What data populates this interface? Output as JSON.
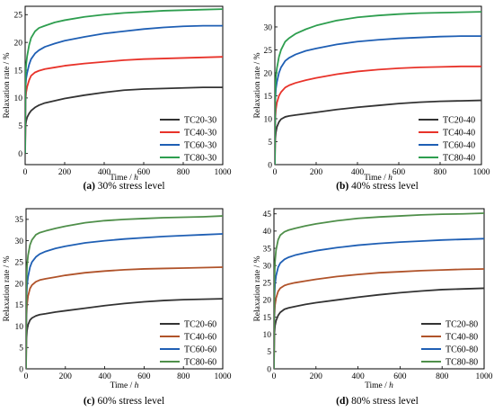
{
  "chart_data": [
    {
      "type": "line",
      "caption_tag": "(a)",
      "caption_text": " 30% stress level",
      "xlabel": "Time / ",
      "xlabel_unit": "h",
      "ylabel": "Relaxation rate / %",
      "xlim": [
        0,
        1000
      ],
      "ylim": [
        -2,
        26.5
      ],
      "xticks": [
        0,
        200,
        400,
        600,
        800,
        1000
      ],
      "yticks": [
        0,
        5,
        10,
        15,
        20,
        25
      ],
      "legend_position": "bottom-right",
      "series": [
        {
          "name": "TC20-30",
          "color": "#333333",
          "x": [
            0,
            2,
            5,
            10,
            20,
            30,
            50,
            70,
            100,
            150,
            200,
            300,
            400,
            500,
            600,
            700,
            800,
            900,
            1000
          ],
          "y": [
            0,
            5.0,
            5.8,
            6.5,
            7.2,
            7.7,
            8.3,
            8.7,
            9.1,
            9.5,
            9.9,
            10.5,
            11.0,
            11.4,
            11.6,
            11.7,
            11.8,
            11.9,
            11.9
          ]
        },
        {
          "name": "TC40-30",
          "color": "#e8332a",
          "x": [
            0,
            2,
            5,
            10,
            20,
            30,
            50,
            70,
            100,
            150,
            200,
            300,
            400,
            500,
            600,
            700,
            800,
            900,
            1000
          ],
          "y": [
            0,
            9.5,
            11.0,
            12.0,
            13.2,
            14.0,
            14.6,
            14.9,
            15.2,
            15.5,
            15.8,
            16.2,
            16.5,
            16.8,
            17.0,
            17.1,
            17.2,
            17.3,
            17.4
          ]
        },
        {
          "name": "TC60-30",
          "color": "#1f5fb4",
          "x": [
            0,
            2,
            5,
            10,
            20,
            30,
            50,
            70,
            100,
            150,
            200,
            300,
            400,
            500,
            600,
            700,
            800,
            900,
            1000
          ],
          "y": [
            0,
            12.0,
            13.5,
            14.5,
            16.0,
            17.0,
            18.0,
            18.6,
            19.2,
            19.8,
            20.3,
            21.0,
            21.6,
            22.0,
            22.4,
            22.7,
            22.9,
            23.0,
            23.0
          ]
        },
        {
          "name": "TC80-30",
          "color": "#2e9e4f",
          "x": [
            0,
            2,
            5,
            10,
            20,
            30,
            50,
            70,
            100,
            150,
            200,
            300,
            400,
            500,
            600,
            700,
            800,
            900,
            1000
          ],
          "y": [
            0,
            14.0,
            16.0,
            17.5,
            19.5,
            20.8,
            22.0,
            22.6,
            23.0,
            23.6,
            24.0,
            24.6,
            25.0,
            25.3,
            25.5,
            25.7,
            25.8,
            25.9,
            26.0
          ]
        }
      ]
    },
    {
      "type": "line",
      "caption_tag": "(b)",
      "caption_text": " 40% stress level",
      "xlabel": "Time / ",
      "xlabel_unit": "h",
      "ylabel": "Relaxation rate / %",
      "xlim": [
        0,
        1000
      ],
      "ylim": [
        0,
        34.5
      ],
      "xticks": [
        0,
        200,
        400,
        600,
        800,
        1000
      ],
      "yticks": [
        0,
        5,
        10,
        15,
        20,
        25,
        30
      ],
      "legend_position": "bottom-right",
      "series": [
        {
          "name": "TC20-40",
          "color": "#333333",
          "x": [
            0,
            2,
            5,
            10,
            20,
            30,
            50,
            70,
            100,
            150,
            200,
            300,
            400,
            500,
            600,
            700,
            800,
            900,
            1000
          ],
          "y": [
            0,
            5.5,
            7.0,
            8.2,
            9.3,
            9.9,
            10.4,
            10.6,
            10.8,
            11.1,
            11.4,
            12.0,
            12.5,
            12.9,
            13.3,
            13.6,
            13.8,
            13.9,
            14.0
          ]
        },
        {
          "name": "TC40-40",
          "color": "#e8332a",
          "x": [
            0,
            2,
            5,
            10,
            20,
            30,
            50,
            70,
            100,
            150,
            200,
            300,
            400,
            500,
            600,
            700,
            800,
            900,
            1000
          ],
          "y": [
            0,
            10.0,
            12.0,
            13.5,
            15.0,
            15.8,
            16.8,
            17.3,
            17.8,
            18.4,
            18.9,
            19.7,
            20.3,
            20.7,
            21.0,
            21.2,
            21.3,
            21.4,
            21.4
          ]
        },
        {
          "name": "TC60-40",
          "color": "#1f5fb4",
          "x": [
            0,
            2,
            5,
            10,
            20,
            30,
            50,
            70,
            100,
            150,
            200,
            300,
            400,
            500,
            600,
            700,
            800,
            900,
            1000
          ],
          "y": [
            0,
            14.0,
            16.5,
            18.0,
            20.0,
            21.2,
            22.6,
            23.3,
            24.0,
            24.8,
            25.3,
            26.2,
            26.8,
            27.2,
            27.5,
            27.7,
            27.9,
            28.0,
            28.0
          ]
        },
        {
          "name": "TC80-40",
          "color": "#2e9e4f",
          "x": [
            0,
            2,
            5,
            10,
            20,
            30,
            50,
            70,
            100,
            150,
            200,
            300,
            400,
            500,
            600,
            700,
            800,
            900,
            1000
          ],
          "y": [
            0,
            16.0,
            19.0,
            21.0,
            23.5,
            25.0,
            26.8,
            27.6,
            28.5,
            29.5,
            30.3,
            31.4,
            32.1,
            32.5,
            32.8,
            33.0,
            33.1,
            33.2,
            33.3
          ]
        }
      ]
    },
    {
      "type": "line",
      "caption_tag": "(c)",
      "caption_text": " 60% stress level",
      "xlabel": "Time / ",
      "xlabel_unit": "h",
      "ylabel": "Relaxation rate / %",
      "xlim": [
        0,
        1000
      ],
      "ylim": [
        0,
        37.5
      ],
      "xticks": [
        0,
        200,
        400,
        600,
        800,
        1000
      ],
      "yticks": [
        0,
        5,
        10,
        15,
        20,
        25,
        30,
        35
      ],
      "legend_position": "bottom-right",
      "series": [
        {
          "name": "TC20-60",
          "color": "#333333",
          "x": [
            0,
            2,
            5,
            10,
            20,
            30,
            50,
            70,
            100,
            150,
            200,
            300,
            400,
            500,
            600,
            700,
            800,
            900,
            1000
          ],
          "y": [
            0,
            7.0,
            9.0,
            10.3,
            11.4,
            11.9,
            12.4,
            12.7,
            12.9,
            13.3,
            13.6,
            14.2,
            14.8,
            15.3,
            15.7,
            16.0,
            16.2,
            16.3,
            16.4
          ]
        },
        {
          "name": "TC40-60",
          "color": "#b0532a",
          "x": [
            0,
            2,
            5,
            10,
            20,
            30,
            50,
            70,
            100,
            150,
            200,
            300,
            400,
            500,
            600,
            700,
            800,
            900,
            1000
          ],
          "y": [
            0,
            12.0,
            15.0,
            17.0,
            18.8,
            19.6,
            20.4,
            20.8,
            21.1,
            21.5,
            21.9,
            22.5,
            22.9,
            23.2,
            23.4,
            23.5,
            23.6,
            23.7,
            23.8
          ]
        },
        {
          "name": "TC60-60",
          "color": "#1f5fb4",
          "x": [
            0,
            2,
            5,
            10,
            20,
            30,
            50,
            70,
            100,
            150,
            200,
            300,
            400,
            500,
            600,
            700,
            800,
            900,
            1000
          ],
          "y": [
            0,
            16.0,
            19.5,
            21.5,
            23.8,
            25.0,
            26.2,
            26.9,
            27.5,
            28.2,
            28.7,
            29.5,
            30.0,
            30.4,
            30.7,
            31.0,
            31.2,
            31.4,
            31.6
          ]
        },
        {
          "name": "TC80-60",
          "color": "#4f8f4a",
          "x": [
            0,
            2,
            5,
            10,
            20,
            30,
            50,
            70,
            100,
            150,
            200,
            300,
            400,
            500,
            600,
            700,
            800,
            900,
            1000
          ],
          "y": [
            0,
            20.0,
            24.0,
            26.5,
            29.0,
            30.2,
            31.4,
            31.9,
            32.3,
            32.9,
            33.4,
            34.2,
            34.7,
            35.0,
            35.2,
            35.4,
            35.5,
            35.6,
            35.8
          ]
        }
      ]
    },
    {
      "type": "line",
      "caption_tag": "(d)",
      "caption_text": " 80% stress level",
      "xlabel": "Time / ",
      "xlabel_unit": "h",
      "ylabel": "Relaxation rate / %",
      "xlim": [
        0,
        1000
      ],
      "ylim": [
        0,
        46.5
      ],
      "xticks": [
        0,
        200,
        400,
        600,
        800,
        1000
      ],
      "yticks": [
        0,
        5,
        10,
        15,
        20,
        25,
        30,
        35,
        40,
        45
      ],
      "legend_position": "bottom-right",
      "series": [
        {
          "name": "TC20-80",
          "color": "#333333",
          "x": [
            0,
            2,
            5,
            10,
            20,
            30,
            50,
            70,
            100,
            150,
            200,
            300,
            400,
            500,
            600,
            700,
            800,
            900,
            1000
          ],
          "y": [
            0,
            10.0,
            12.5,
            14.0,
            15.5,
            16.4,
            17.3,
            17.7,
            18.1,
            18.7,
            19.2,
            20.0,
            20.8,
            21.5,
            22.1,
            22.6,
            23.0,
            23.2,
            23.4
          ]
        },
        {
          "name": "TC40-80",
          "color": "#b0532a",
          "x": [
            0,
            2,
            5,
            10,
            20,
            30,
            50,
            70,
            100,
            150,
            200,
            300,
            400,
            500,
            600,
            700,
            800,
            900,
            1000
          ],
          "y": [
            0,
            15.0,
            18.5,
            20.5,
            22.5,
            23.4,
            24.2,
            24.6,
            25.0,
            25.5,
            26.0,
            26.8,
            27.4,
            27.9,
            28.2,
            28.5,
            28.7,
            28.9,
            29.0
          ]
        },
        {
          "name": "TC60-80",
          "color": "#1f5fb4",
          "x": [
            0,
            2,
            5,
            10,
            20,
            30,
            50,
            70,
            100,
            150,
            200,
            300,
            400,
            500,
            600,
            700,
            800,
            900,
            1000
          ],
          "y": [
            0,
            20.0,
            24.5,
            27.0,
            29.5,
            30.7,
            31.8,
            32.4,
            33.0,
            33.7,
            34.3,
            35.2,
            35.9,
            36.4,
            36.8,
            37.1,
            37.4,
            37.6,
            37.8
          ]
        },
        {
          "name": "TC80-80",
          "color": "#4f8f4a",
          "x": [
            0,
            2,
            5,
            10,
            20,
            30,
            50,
            70,
            100,
            150,
            200,
            300,
            400,
            500,
            600,
            700,
            800,
            900,
            1000
          ],
          "y": [
            0,
            25.0,
            31.0,
            34.5,
            37.5,
            38.8,
            39.8,
            40.3,
            40.8,
            41.5,
            42.1,
            43.0,
            43.7,
            44.1,
            44.4,
            44.7,
            44.9,
            45.0,
            45.2
          ]
        }
      ]
    }
  ]
}
